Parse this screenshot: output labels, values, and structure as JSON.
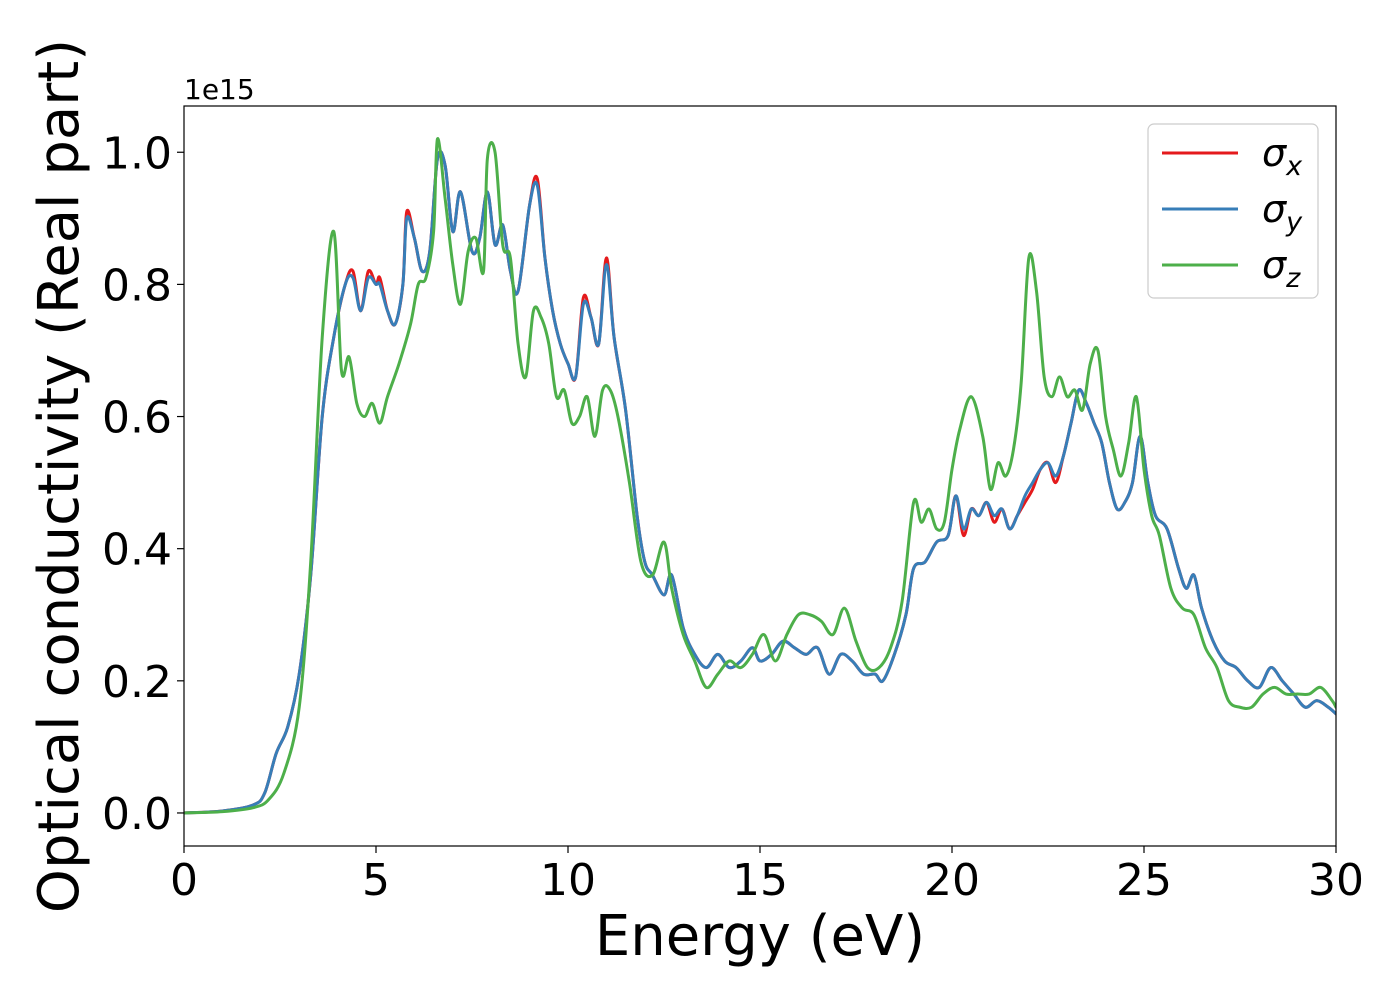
{
  "chart_data": {
    "type": "line",
    "xlabel": "Energy (eV)",
    "ylabel": "Optical conductivity (Real part)",
    "offset_text": "1e15",
    "xlim": [
      0,
      30
    ],
    "ylim": [
      -0.05,
      1.07
    ],
    "x_ticks": [
      0,
      5,
      10,
      15,
      20,
      25,
      30
    ],
    "x_tick_labels": [
      "0",
      "5",
      "10",
      "15",
      "20",
      "25",
      "30"
    ],
    "y_ticks": [
      0.0,
      0.2,
      0.4,
      0.6,
      0.8,
      1.0
    ],
    "y_tick_labels": [
      "0.0",
      "0.2",
      "0.4",
      "0.6",
      "0.8",
      "1.0"
    ],
    "grid": false,
    "legend_position": "top-right",
    "series": [
      {
        "name": "σx",
        "name_base": "σ",
        "name_sub": "x",
        "color": "#e41a1c",
        "x": [
          0,
          1,
          1.8,
          2.1,
          2.4,
          2.7,
          3.0,
          3.3,
          3.6,
          3.9,
          4.2,
          4.4,
          4.6,
          4.8,
          5.0,
          5.1,
          5.3,
          5.5,
          5.7,
          5.8,
          6.0,
          6.2,
          6.4,
          6.6,
          6.8,
          7.0,
          7.2,
          7.5,
          7.7,
          7.9,
          8.1,
          8.3,
          8.5,
          8.7,
          9.0,
          9.2,
          9.4,
          9.6,
          9.8,
          10.0,
          10.2,
          10.4,
          10.6,
          10.8,
          11.0,
          11.2,
          11.5,
          11.8,
          12.0,
          12.2,
          12.5,
          12.7,
          13.0,
          13.3,
          13.6,
          13.9,
          14.2,
          14.5,
          14.8,
          15.0,
          15.3,
          15.6,
          15.9,
          16.2,
          16.5,
          16.8,
          17.1,
          17.4,
          17.7,
          18.0,
          18.2,
          18.5,
          18.8,
          19.0,
          19.3,
          19.6,
          19.9,
          20.1,
          20.3,
          20.5,
          20.7,
          20.9,
          21.1,
          21.3,
          21.5,
          21.7,
          21.9,
          22.1,
          22.3,
          22.5,
          22.7,
          22.9,
          23.1,
          23.3,
          23.5,
          23.7,
          23.9,
          24.1,
          24.3,
          24.5,
          24.7,
          24.9,
          25.1,
          25.3,
          25.6,
          25.9,
          26.1,
          26.3,
          26.5,
          26.8,
          27.1,
          27.4,
          27.7,
          28.0,
          28.3,
          28.6,
          28.9,
          29.2,
          29.5,
          29.8,
          30.0
        ],
        "y": [
          0.0,
          0.003,
          0.012,
          0.03,
          0.09,
          0.13,
          0.21,
          0.36,
          0.6,
          0.72,
          0.8,
          0.82,
          0.76,
          0.82,
          0.8,
          0.81,
          0.76,
          0.74,
          0.8,
          0.91,
          0.87,
          0.82,
          0.85,
          0.99,
          0.98,
          0.88,
          0.94,
          0.85,
          0.87,
          0.94,
          0.86,
          0.89,
          0.82,
          0.79,
          0.92,
          0.96,
          0.84,
          0.76,
          0.71,
          0.68,
          0.66,
          0.78,
          0.75,
          0.71,
          0.84,
          0.72,
          0.61,
          0.45,
          0.38,
          0.36,
          0.33,
          0.36,
          0.28,
          0.24,
          0.22,
          0.24,
          0.22,
          0.23,
          0.25,
          0.23,
          0.24,
          0.26,
          0.25,
          0.24,
          0.25,
          0.21,
          0.24,
          0.23,
          0.21,
          0.21,
          0.2,
          0.24,
          0.3,
          0.37,
          0.38,
          0.41,
          0.42,
          0.48,
          0.42,
          0.46,
          0.45,
          0.47,
          0.44,
          0.46,
          0.43,
          0.45,
          0.47,
          0.49,
          0.52,
          0.53,
          0.5,
          0.54,
          0.59,
          0.64,
          0.62,
          0.59,
          0.56,
          0.5,
          0.46,
          0.47,
          0.5,
          0.57,
          0.5,
          0.45,
          0.43,
          0.37,
          0.34,
          0.36,
          0.31,
          0.26,
          0.23,
          0.22,
          0.2,
          0.19,
          0.22,
          0.2,
          0.18,
          0.16,
          0.17,
          0.16,
          0.15
        ]
      },
      {
        "name": "σy",
        "name_base": "σ",
        "name_sub": "y",
        "color": "#377eb8",
        "x": [
          0,
          1,
          1.8,
          2.1,
          2.4,
          2.7,
          3.0,
          3.3,
          3.6,
          3.9,
          4.2,
          4.4,
          4.6,
          4.8,
          5.0,
          5.1,
          5.3,
          5.5,
          5.7,
          5.8,
          6.0,
          6.2,
          6.4,
          6.6,
          6.8,
          7.0,
          7.2,
          7.5,
          7.7,
          7.9,
          8.1,
          8.3,
          8.5,
          8.7,
          9.0,
          9.2,
          9.4,
          9.6,
          9.8,
          10.0,
          10.2,
          10.4,
          10.6,
          10.8,
          11.0,
          11.2,
          11.5,
          11.8,
          12.0,
          12.2,
          12.5,
          12.7,
          13.0,
          13.3,
          13.6,
          13.9,
          14.2,
          14.5,
          14.8,
          15.0,
          15.3,
          15.6,
          15.9,
          16.2,
          16.5,
          16.8,
          17.1,
          17.4,
          17.7,
          18.0,
          18.2,
          18.5,
          18.8,
          19.0,
          19.3,
          19.6,
          19.9,
          20.1,
          20.3,
          20.5,
          20.7,
          20.9,
          21.1,
          21.3,
          21.5,
          21.7,
          21.9,
          22.1,
          22.3,
          22.5,
          22.7,
          22.9,
          23.1,
          23.3,
          23.5,
          23.7,
          23.9,
          24.1,
          24.3,
          24.5,
          24.7,
          24.9,
          25.1,
          25.3,
          25.6,
          25.9,
          26.1,
          26.3,
          26.5,
          26.8,
          27.1,
          27.4,
          27.7,
          28.0,
          28.3,
          28.6,
          28.9,
          29.2,
          29.5,
          29.8,
          30.0
        ],
        "y": [
          0.0,
          0.003,
          0.012,
          0.03,
          0.09,
          0.13,
          0.21,
          0.36,
          0.6,
          0.72,
          0.8,
          0.81,
          0.76,
          0.81,
          0.8,
          0.8,
          0.76,
          0.74,
          0.8,
          0.9,
          0.87,
          0.82,
          0.85,
          0.99,
          0.98,
          0.88,
          0.94,
          0.85,
          0.87,
          0.94,
          0.86,
          0.89,
          0.82,
          0.79,
          0.92,
          0.95,
          0.84,
          0.76,
          0.71,
          0.68,
          0.66,
          0.77,
          0.75,
          0.71,
          0.83,
          0.72,
          0.61,
          0.45,
          0.38,
          0.36,
          0.33,
          0.36,
          0.28,
          0.24,
          0.22,
          0.24,
          0.22,
          0.23,
          0.25,
          0.23,
          0.24,
          0.26,
          0.25,
          0.24,
          0.25,
          0.21,
          0.24,
          0.23,
          0.21,
          0.21,
          0.2,
          0.24,
          0.3,
          0.37,
          0.38,
          0.41,
          0.42,
          0.48,
          0.43,
          0.46,
          0.45,
          0.47,
          0.45,
          0.46,
          0.43,
          0.45,
          0.48,
          0.5,
          0.52,
          0.53,
          0.51,
          0.54,
          0.59,
          0.64,
          0.62,
          0.59,
          0.56,
          0.5,
          0.46,
          0.47,
          0.5,
          0.57,
          0.5,
          0.45,
          0.43,
          0.37,
          0.34,
          0.36,
          0.31,
          0.26,
          0.23,
          0.22,
          0.2,
          0.19,
          0.22,
          0.2,
          0.18,
          0.16,
          0.17,
          0.16,
          0.15
        ]
      },
      {
        "name": "σz",
        "name_base": "σ",
        "name_sub": "z",
        "color": "#4daf4a",
        "x": [
          0,
          1,
          1.8,
          2.2,
          2.6,
          3.0,
          3.3,
          3.6,
          3.9,
          4.1,
          4.3,
          4.5,
          4.7,
          4.9,
          5.1,
          5.3,
          5.6,
          5.9,
          6.1,
          6.3,
          6.5,
          6.6,
          6.8,
          7.0,
          7.2,
          7.4,
          7.6,
          7.8,
          7.9,
          8.1,
          8.3,
          8.5,
          8.7,
          8.9,
          9.1,
          9.3,
          9.5,
          9.7,
          9.9,
          10.1,
          10.3,
          10.5,
          10.7,
          10.9,
          11.1,
          11.3,
          11.6,
          11.9,
          12.2,
          12.5,
          12.7,
          13.0,
          13.3,
          13.6,
          13.9,
          14.2,
          14.5,
          14.8,
          15.1,
          15.4,
          15.7,
          16.0,
          16.3,
          16.6,
          16.9,
          17.2,
          17.5,
          17.8,
          18.1,
          18.4,
          18.7,
          19.0,
          19.2,
          19.4,
          19.6,
          19.8,
          20.0,
          20.2,
          20.5,
          20.8,
          21.0,
          21.2,
          21.4,
          21.6,
          21.8,
          22.0,
          22.2,
          22.4,
          22.6,
          22.8,
          23.0,
          23.2,
          23.4,
          23.6,
          23.8,
          24.0,
          24.2,
          24.4,
          24.6,
          24.8,
          25.0,
          25.2,
          25.4,
          25.7,
          26.0,
          26.3,
          26.6,
          26.9,
          27.2,
          27.5,
          27.8,
          28.1,
          28.4,
          28.7,
          29.0,
          29.3,
          29.6,
          29.9,
          30.0
        ],
        "y": [
          0.0,
          0.002,
          0.008,
          0.02,
          0.06,
          0.16,
          0.38,
          0.72,
          0.88,
          0.67,
          0.69,
          0.62,
          0.6,
          0.62,
          0.59,
          0.63,
          0.68,
          0.74,
          0.8,
          0.81,
          0.88,
          1.02,
          0.93,
          0.83,
          0.77,
          0.85,
          0.87,
          0.82,
          0.99,
          1.0,
          0.86,
          0.84,
          0.71,
          0.66,
          0.76,
          0.75,
          0.71,
          0.63,
          0.64,
          0.59,
          0.6,
          0.63,
          0.57,
          0.64,
          0.64,
          0.6,
          0.5,
          0.38,
          0.36,
          0.41,
          0.34,
          0.27,
          0.23,
          0.19,
          0.21,
          0.23,
          0.22,
          0.24,
          0.27,
          0.23,
          0.27,
          0.3,
          0.3,
          0.29,
          0.27,
          0.31,
          0.26,
          0.22,
          0.22,
          0.25,
          0.32,
          0.47,
          0.44,
          0.46,
          0.43,
          0.44,
          0.52,
          0.58,
          0.63,
          0.57,
          0.49,
          0.53,
          0.51,
          0.55,
          0.65,
          0.84,
          0.79,
          0.66,
          0.63,
          0.66,
          0.63,
          0.64,
          0.61,
          0.68,
          0.7,
          0.6,
          0.55,
          0.51,
          0.56,
          0.63,
          0.52,
          0.45,
          0.42,
          0.34,
          0.31,
          0.3,
          0.25,
          0.22,
          0.17,
          0.16,
          0.16,
          0.18,
          0.19,
          0.18,
          0.18,
          0.18,
          0.19,
          0.17,
          0.16
        ]
      }
    ]
  }
}
